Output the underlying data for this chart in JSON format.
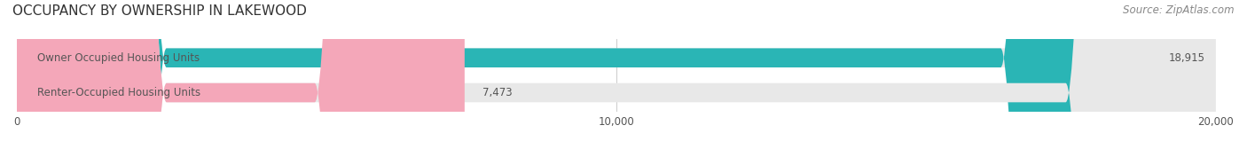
{
  "title": "OCCUPANCY BY OWNERSHIP IN LAKEWOOD",
  "source_text": "Source: ZipAtlas.com",
  "categories": [
    "Owner Occupied Housing Units",
    "Renter-Occupied Housing Units"
  ],
  "values": [
    18915,
    7473
  ],
  "bar_colors": [
    "#2ab5b5",
    "#f4a7b9"
  ],
  "bar_bg_color": "#e8e8e8",
  "label_color": "#555555",
  "value_color": "#555555",
  "title_color": "#333333",
  "source_color": "#888888",
  "xlim": [
    0,
    20000
  ],
  "xticks": [
    0,
    10000,
    20000
  ],
  "xticklabels": [
    "0",
    "10,000",
    "20,000"
  ],
  "background_color": "#ffffff",
  "bar_height": 0.55,
  "title_fontsize": 11,
  "label_fontsize": 8.5,
  "value_fontsize": 8.5,
  "tick_fontsize": 8.5,
  "source_fontsize": 8.5
}
